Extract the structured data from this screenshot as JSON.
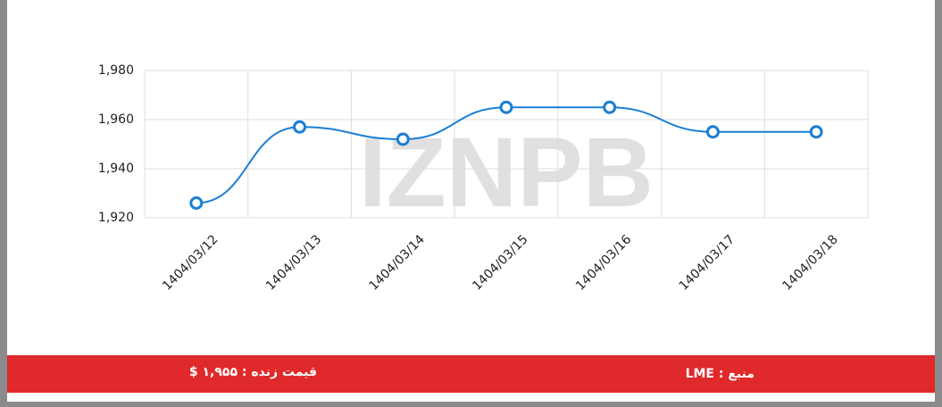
{
  "chart_data": {
    "type": "line",
    "watermark": "IZNPB",
    "categories": [
      "1404/03/12",
      "1404/03/13",
      "1404/03/14",
      "1404/03/15",
      "1404/03/16",
      "1404/03/17",
      "1404/03/18"
    ],
    "values": [
      1926,
      1957,
      1952,
      1965,
      1965,
      1955,
      1955
    ],
    "color": "#1a7fd4",
    "ylim": [
      1920,
      1980
    ],
    "yticks": [
      {
        "value": 1920,
        "label": "1,920"
      },
      {
        "value": 1940,
        "label": "1,940"
      },
      {
        "value": 1960,
        "label": "1,960"
      },
      {
        "value": 1980,
        "label": "1,980"
      }
    ],
    "grid": true
  },
  "footer": {
    "source": "منبع : LME",
    "live_price": "قیمت زنده : ۱,۹۵۵ $"
  }
}
